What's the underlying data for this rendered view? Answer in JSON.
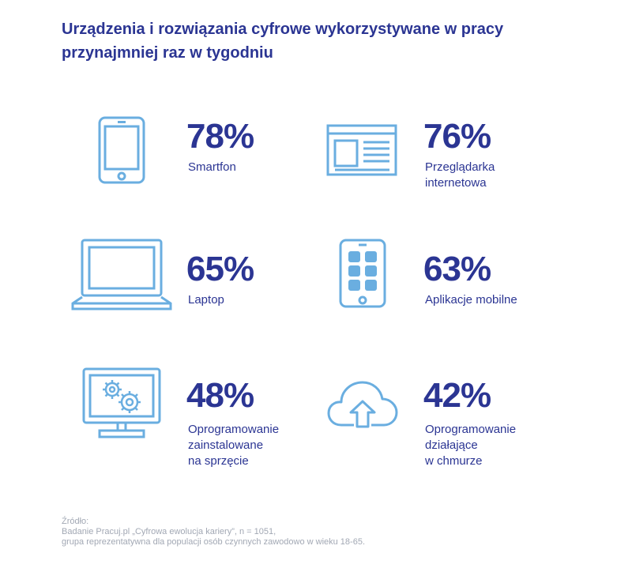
{
  "title": "Urządzenia i rozwiązania cyfrowe wykorzystywane w pracy przynajmniej raz w tygodniu",
  "colors": {
    "heading": "#2b3593",
    "icon_stroke": "#6aaee0",
    "source_text": "#a2a8b4"
  },
  "chart_data": {
    "type": "table",
    "title": "Urządzenia i rozwiązania cyfrowe wykorzystywane w pracy przynajmniej raz w tygodniu",
    "items": [
      {
        "label": "Smartfon",
        "value": 78,
        "value_text": "78%",
        "icon": "smartphone-icon"
      },
      {
        "label": "Przeglądarka\ninternetowa",
        "value": 76,
        "value_text": "76%",
        "icon": "browser-window-icon"
      },
      {
        "label": "Laptop",
        "value": 65,
        "value_text": "65%",
        "icon": "laptop-icon"
      },
      {
        "label": "Aplikacje mobilne",
        "value": 63,
        "value_text": "63%",
        "icon": "mobile-apps-icon"
      },
      {
        "label": "Oprogramowanie\nzainstalowane\nna sprzęcie",
        "value": 48,
        "value_text": "48%",
        "icon": "monitor-gears-icon"
      },
      {
        "label": "Oprogramowanie\ndziałające\nw chmurze",
        "value": 42,
        "value_text": "42%",
        "icon": "cloud-upload-icon"
      }
    ]
  },
  "source": {
    "heading": "Źródło:",
    "line1": "Badanie Pracuj.pl „Cyfrowa ewolucja kariery”, n = 1051,",
    "line2": "grupa reprezentatywna dla populacji osób czynnych zawodowo w wieku 18-65."
  }
}
